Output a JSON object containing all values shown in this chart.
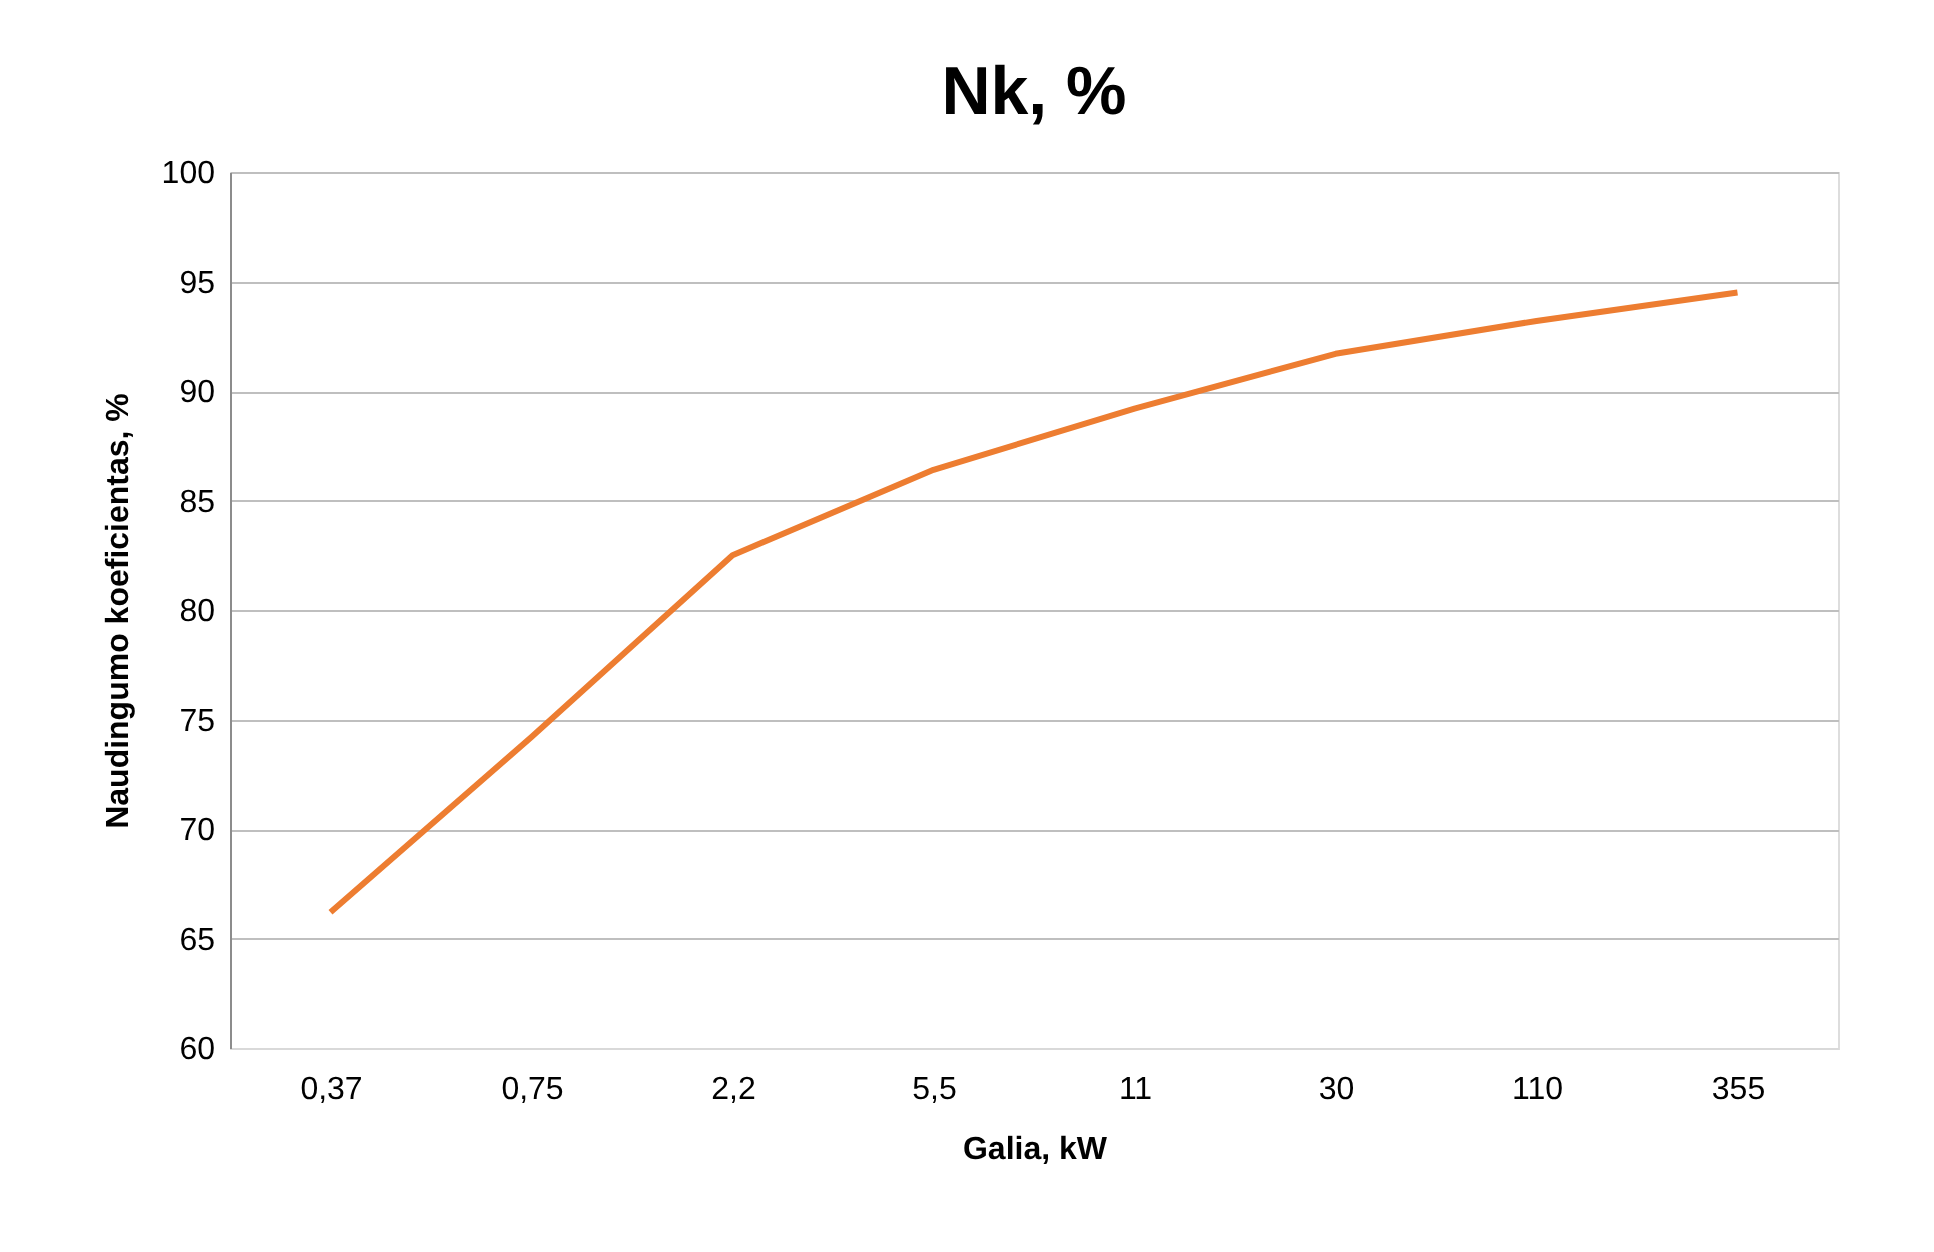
{
  "chart_data": {
    "type": "line",
    "title": "Nk, %",
    "xlabel": "Galia, kW",
    "ylabel": "Naudingumo koeficientas, %",
    "categories": [
      "0,37",
      "0,75",
      "2,2",
      "5,5",
      "11",
      "30",
      "110",
      "355"
    ],
    "series": [
      {
        "color": "#ed7d31",
        "values": [
          66.2,
          74.2,
          82.5,
          86.4,
          89.2,
          91.7,
          93.2,
          94.5
        ]
      }
    ],
    "ylim": [
      60,
      100
    ],
    "yticks": [
      60,
      65,
      70,
      75,
      80,
      85,
      90,
      95,
      100
    ],
    "grid": "y",
    "marker": "none",
    "line_style": "solid"
  }
}
